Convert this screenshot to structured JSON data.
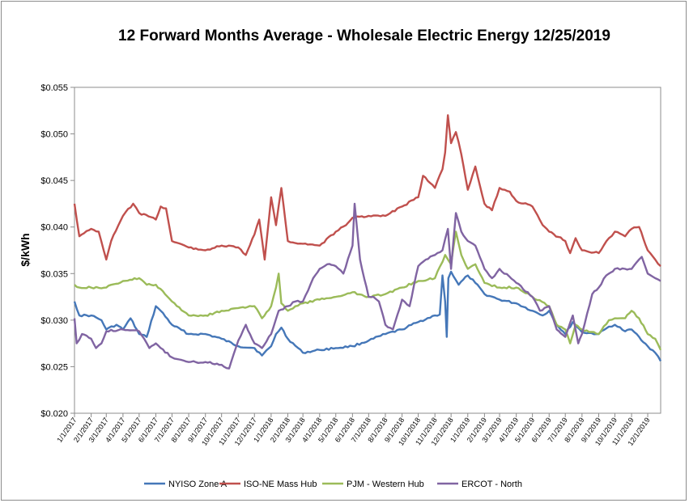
{
  "chart_data": {
    "type": "line",
    "title": "12 Forward Months Average - Wholesale Electric Energy 12/25/2019",
    "xlabel": "",
    "ylabel": "$/kWh",
    "ylim": [
      0.02,
      0.055
    ],
    "y_tick_labels": [
      "$0.020",
      "$0.025",
      "$0.030",
      "$0.035",
      "$0.040",
      "$0.045",
      "$0.050",
      "$0.055"
    ],
    "x_tick_labels": [
      "1/1/2017",
      "2/1/2017",
      "3/1/2017",
      "4/1/2017",
      "5/1/2017",
      "6/1/2017",
      "7/1/2017",
      "8/1/2017",
      "9/1/2017",
      "10/1/2017",
      "11/1/2017",
      "12/1/2017",
      "1/1/2018",
      "2/1/2018",
      "3/1/2018",
      "4/1/2018",
      "5/1/2018",
      "6/1/2018",
      "7/1/2018",
      "8/1/2018",
      "9/1/2018",
      "10/1/2018",
      "11/1/2018",
      "12/1/2018",
      "1/1/2019",
      "2/1/2019",
      "3/1/2019",
      "4/1/2019",
      "5/1/2019",
      "6/1/2019",
      "7/1/2019",
      "8/1/2019",
      "9/1/2019",
      "10/1/2019",
      "11/1/2019",
      "12/1/2019"
    ],
    "x_range": [
      "1/1/2017",
      "12/25/2019"
    ],
    "grid": false,
    "legend": "bottom",
    "series": [
      {
        "name": "NYISO Zone A",
        "color": "#4577b8",
        "points": [
          [
            "1/1/2017",
            0.032
          ],
          [
            "1/10/2017",
            0.0305
          ],
          [
            "2/1/2017",
            0.0305
          ],
          [
            "2/20/2017",
            0.03
          ],
          [
            "3/1/2017",
            0.029
          ],
          [
            "3/20/2017",
            0.0295
          ],
          [
            "4/1/2017",
            0.029
          ],
          [
            "4/15/2017",
            0.0302
          ],
          [
            "5/1/2017",
            0.0285
          ],
          [
            "5/15/2017",
            0.0282
          ],
          [
            "6/1/2017",
            0.0315
          ],
          [
            "6/10/2017",
            0.031
          ],
          [
            "7/1/2017",
            0.0295
          ],
          [
            "8/1/2017",
            0.0285
          ],
          [
            "9/1/2017",
            0.0285
          ],
          [
            "10/1/2017",
            0.028
          ],
          [
            "11/1/2017",
            0.0272
          ],
          [
            "12/1/2017",
            0.027
          ],
          [
            "12/15/2017",
            0.0262
          ],
          [
            "1/1/2018",
            0.0272
          ],
          [
            "1/10/2018",
            0.0285
          ],
          [
            "1/20/2018",
            0.0292
          ],
          [
            "2/1/2018",
            0.028
          ],
          [
            "3/1/2018",
            0.0265
          ],
          [
            "4/1/2018",
            0.0268
          ],
          [
            "5/1/2018",
            0.027
          ],
          [
            "6/1/2018",
            0.0272
          ],
          [
            "7/1/2018",
            0.0278
          ],
          [
            "8/1/2018",
            0.0285
          ],
          [
            "9/1/2018",
            0.029
          ],
          [
            "10/1/2018",
            0.0298
          ],
          [
            "11/1/2018",
            0.0305
          ],
          [
            "11/10/2018",
            0.0306
          ],
          [
            "11/15/2018",
            0.0348
          ],
          [
            "11/20/2018",
            0.032
          ],
          [
            "11/23/2018",
            0.0282
          ],
          [
            "11/26/2018",
            0.0345
          ],
          [
            "12/1/2018",
            0.0352
          ],
          [
            "12/15/2018",
            0.0338
          ],
          [
            "1/1/2019",
            0.0348
          ],
          [
            "1/15/2019",
            0.034
          ],
          [
            "2/1/2019",
            0.0328
          ],
          [
            "3/1/2019",
            0.0322
          ],
          [
            "4/1/2019",
            0.0318
          ],
          [
            "5/1/2019",
            0.031
          ],
          [
            "5/20/2019",
            0.0305
          ],
          [
            "6/1/2019",
            0.031
          ],
          [
            "6/15/2019",
            0.0295
          ],
          [
            "7/1/2019",
            0.0285
          ],
          [
            "7/15/2019",
            0.0298
          ],
          [
            "8/1/2019",
            0.0287
          ],
          [
            "9/1/2019",
            0.0285
          ],
          [
            "9/20/2019",
            0.0293
          ],
          [
            "10/1/2019",
            0.0295
          ],
          [
            "10/20/2019",
            0.0288
          ],
          [
            "11/1/2019",
            0.029
          ],
          [
            "11/15/2019",
            0.0282
          ],
          [
            "12/1/2019",
            0.0272
          ],
          [
            "12/15/2019",
            0.0265
          ],
          [
            "12/25/2019",
            0.0256
          ]
        ]
      },
      {
        "name": "ISO-NE Mass Hub",
        "color": "#c0504d",
        "points": [
          [
            "1/1/2017",
            0.0425
          ],
          [
            "1/10/2017",
            0.039
          ],
          [
            "2/1/2017",
            0.0398
          ],
          [
            "2/15/2017",
            0.0395
          ],
          [
            "3/1/2017",
            0.0365
          ],
          [
            "3/10/2017",
            0.0385
          ],
          [
            "4/1/2017",
            0.0412
          ],
          [
            "4/20/2017",
            0.0425
          ],
          [
            "5/1/2017",
            0.0415
          ],
          [
            "6/1/2017",
            0.0408
          ],
          [
            "6/10/2017",
            0.0422
          ],
          [
            "6/20/2017",
            0.042
          ],
          [
            "7/1/2017",
            0.0385
          ],
          [
            "8/1/2017",
            0.0378
          ],
          [
            "9/1/2017",
            0.0375
          ],
          [
            "10/1/2017",
            0.038
          ],
          [
            "11/1/2017",
            0.0378
          ],
          [
            "11/15/2017",
            0.037
          ],
          [
            "12/1/2017",
            0.0392
          ],
          [
            "12/10/2017",
            0.0408
          ],
          [
            "12/20/2017",
            0.0365
          ],
          [
            "1/1/2018",
            0.0432
          ],
          [
            "1/10/2018",
            0.0402
          ],
          [
            "1/20/2018",
            0.0442
          ],
          [
            "2/1/2018",
            0.0385
          ],
          [
            "3/1/2018",
            0.0382
          ],
          [
            "4/1/2018",
            0.038
          ],
          [
            "5/1/2018",
            0.0395
          ],
          [
            "5/20/2018",
            0.0402
          ],
          [
            "6/1/2018",
            0.041
          ],
          [
            "7/1/2018",
            0.0412
          ],
          [
            "8/1/2018",
            0.0412
          ],
          [
            "9/1/2018",
            0.0422
          ],
          [
            "10/1/2018",
            0.0432
          ],
          [
            "10/10/2018",
            0.0455
          ],
          [
            "11/1/2018",
            0.0442
          ],
          [
            "11/15/2018",
            0.0462
          ],
          [
            "11/20/2018",
            0.048
          ],
          [
            "11/25/2018",
            0.052
          ],
          [
            "12/1/2018",
            0.049
          ],
          [
            "12/10/2018",
            0.0502
          ],
          [
            "12/20/2018",
            0.0478
          ],
          [
            "1/1/2019",
            0.044
          ],
          [
            "1/15/2019",
            0.0465
          ],
          [
            "2/1/2019",
            0.0425
          ],
          [
            "2/15/2019",
            0.0418
          ],
          [
            "3/1/2019",
            0.0442
          ],
          [
            "3/20/2019",
            0.0438
          ],
          [
            "4/1/2019",
            0.0428
          ],
          [
            "5/1/2019",
            0.0422
          ],
          [
            "5/20/2019",
            0.0402
          ],
          [
            "6/1/2019",
            0.0395
          ],
          [
            "7/1/2019",
            0.0385
          ],
          [
            "7/10/2019",
            0.0372
          ],
          [
            "7/20/2019",
            0.0388
          ],
          [
            "8/1/2019",
            0.0375
          ],
          [
            "9/1/2019",
            0.0372
          ],
          [
            "9/20/2019",
            0.0388
          ],
          [
            "10/1/2019",
            0.0395
          ],
          [
            "10/20/2019",
            0.039
          ],
          [
            "11/1/2019",
            0.0398
          ],
          [
            "11/15/2019",
            0.04
          ],
          [
            "12/1/2019",
            0.0375
          ],
          [
            "12/15/2019",
            0.0365
          ],
          [
            "12/25/2019",
            0.0358
          ]
        ]
      },
      {
        "name": "PJM - Western Hub",
        "color": "#9bbb59",
        "points": [
          [
            "1/1/2017",
            0.0338
          ],
          [
            "1/10/2017",
            0.0335
          ],
          [
            "2/1/2017",
            0.0335
          ],
          [
            "3/1/2017",
            0.0335
          ],
          [
            "4/1/2017",
            0.0342
          ],
          [
            "5/1/2017",
            0.0345
          ],
          [
            "5/15/2017",
            0.0338
          ],
          [
            "6/1/2017",
            0.0338
          ],
          [
            "7/1/2017",
            0.032
          ],
          [
            "8/1/2017",
            0.0305
          ],
          [
            "9/1/2017",
            0.0305
          ],
          [
            "10/1/2017",
            0.031
          ],
          [
            "11/1/2017",
            0.0313
          ],
          [
            "12/1/2017",
            0.0315
          ],
          [
            "12/15/2017",
            0.0302
          ],
          [
            "1/1/2018",
            0.0315
          ],
          [
            "1/10/2018",
            0.0335
          ],
          [
            "1/15/2018",
            0.035
          ],
          [
            "1/20/2018",
            0.0318
          ],
          [
            "2/1/2018",
            0.031
          ],
          [
            "3/1/2018",
            0.0318
          ],
          [
            "4/1/2018",
            0.0322
          ],
          [
            "5/1/2018",
            0.0325
          ],
          [
            "6/1/2018",
            0.033
          ],
          [
            "7/1/2018",
            0.0325
          ],
          [
            "8/1/2018",
            0.0328
          ],
          [
            "9/1/2018",
            0.0335
          ],
          [
            "10/1/2018",
            0.0342
          ],
          [
            "11/1/2018",
            0.0345
          ],
          [
            "11/20/2018",
            0.037
          ],
          [
            "12/1/2018",
            0.036
          ],
          [
            "12/10/2018",
            0.0395
          ],
          [
            "12/20/2018",
            0.037
          ],
          [
            "1/1/2019",
            0.0355
          ],
          [
            "1/15/2019",
            0.036
          ],
          [
            "2/1/2019",
            0.034
          ],
          [
            "3/1/2019",
            0.0335
          ],
          [
            "4/1/2019",
            0.0335
          ],
          [
            "5/1/2019",
            0.0325
          ],
          [
            "6/1/2019",
            0.0315
          ],
          [
            "6/15/2019",
            0.0295
          ],
          [
            "7/1/2019",
            0.029
          ],
          [
            "7/10/2019",
            0.0275
          ],
          [
            "7/20/2019",
            0.0295
          ],
          [
            "8/1/2019",
            0.029
          ],
          [
            "9/1/2019",
            0.0285
          ],
          [
            "9/20/2019",
            0.03
          ],
          [
            "10/1/2019",
            0.0302
          ],
          [
            "10/20/2019",
            0.0302
          ],
          [
            "11/1/2019",
            0.031
          ],
          [
            "11/15/2019",
            0.0302
          ],
          [
            "12/1/2019",
            0.0285
          ],
          [
            "12/15/2019",
            0.028
          ],
          [
            "12/25/2019",
            0.0268
          ]
        ]
      },
      {
        "name": "ERCOT - North",
        "color": "#8064a2",
        "points": [
          [
            "1/1/2017",
            0.0302
          ],
          [
            "1/5/2017",
            0.0275
          ],
          [
            "1/15/2017",
            0.0285
          ],
          [
            "2/1/2017",
            0.028
          ],
          [
            "2/10/2017",
            0.027
          ],
          [
            "2/20/2017",
            0.0275
          ],
          [
            "3/1/2017",
            0.0288
          ],
          [
            "4/1/2017",
            0.029
          ],
          [
            "5/1/2017",
            0.0288
          ],
          [
            "5/20/2017",
            0.027
          ],
          [
            "6/1/2017",
            0.0275
          ],
          [
            "6/10/2017",
            0.027
          ],
          [
            "7/1/2017",
            0.026
          ],
          [
            "8/1/2017",
            0.0255
          ],
          [
            "9/1/2017",
            0.0255
          ],
          [
            "10/1/2017",
            0.0252
          ],
          [
            "10/15/2017",
            0.0248
          ],
          [
            "11/1/2017",
            0.0278
          ],
          [
            "11/15/2017",
            0.0295
          ],
          [
            "12/1/2017",
            0.0275
          ],
          [
            "12/15/2017",
            0.027
          ],
          [
            "1/1/2018",
            0.0285
          ],
          [
            "1/15/2018",
            0.031
          ],
          [
            "2/1/2018",
            0.0315
          ],
          [
            "2/15/2018",
            0.032
          ],
          [
            "3/1/2018",
            0.032
          ],
          [
            "3/20/2018",
            0.0345
          ],
          [
            "4/1/2018",
            0.0355
          ],
          [
            "4/15/2018",
            0.036
          ],
          [
            "5/1/2018",
            0.0358
          ],
          [
            "5/15/2018",
            0.035
          ],
          [
            "6/1/2018",
            0.038
          ],
          [
            "6/5/2018",
            0.0425
          ],
          [
            "6/15/2018",
            0.0365
          ],
          [
            "7/1/2018",
            0.0325
          ],
          [
            "7/10/2018",
            0.0325
          ],
          [
            "7/20/2018",
            0.032
          ],
          [
            "8/1/2018",
            0.0295
          ],
          [
            "8/15/2018",
            0.029
          ],
          [
            "9/1/2018",
            0.0322
          ],
          [
            "9/15/2018",
            0.0315
          ],
          [
            "10/1/2018",
            0.0358
          ],
          [
            "10/15/2018",
            0.0365
          ],
          [
            "11/1/2018",
            0.037
          ],
          [
            "11/15/2018",
            0.0375
          ],
          [
            "11/25/2018",
            0.0398
          ],
          [
            "12/1/2018",
            0.0355
          ],
          [
            "12/10/2018",
            0.0415
          ],
          [
            "12/20/2018",
            0.0395
          ],
          [
            "1/1/2019",
            0.0385
          ],
          [
            "1/15/2019",
            0.038
          ],
          [
            "2/1/2019",
            0.0355
          ],
          [
            "2/15/2019",
            0.0345
          ],
          [
            "3/1/2019",
            0.0355
          ],
          [
            "4/1/2019",
            0.034
          ],
          [
            "5/1/2019",
            0.0325
          ],
          [
            "5/15/2019",
            0.031
          ],
          [
            "6/1/2019",
            0.0315
          ],
          [
            "6/15/2019",
            0.029
          ],
          [
            "7/1/2019",
            0.0282
          ],
          [
            "7/15/2019",
            0.0305
          ],
          [
            "7/25/2019",
            0.0275
          ],
          [
            "8/1/2019",
            0.0285
          ],
          [
            "8/20/2019",
            0.0328
          ],
          [
            "9/1/2019",
            0.0335
          ],
          [
            "9/15/2019",
            0.0348
          ],
          [
            "10/1/2019",
            0.0355
          ],
          [
            "10/20/2019",
            0.0355
          ],
          [
            "11/1/2019",
            0.0355
          ],
          [
            "11/20/2019",
            0.0368
          ],
          [
            "12/1/2019",
            0.035
          ],
          [
            "12/15/2019",
            0.0345
          ],
          [
            "12/25/2019",
            0.0342
          ]
        ]
      }
    ]
  }
}
